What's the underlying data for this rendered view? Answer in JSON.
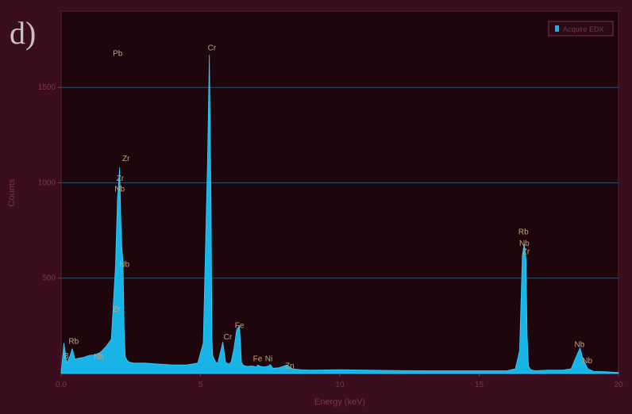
{
  "panel_label": "d)",
  "colors": {
    "figure_bg": "#3a0e1e",
    "plot_bg": "#1e070c",
    "grid": "#2f4f66",
    "spectrum_fill": "#18b4e6",
    "spectrum_edge": "#35d0ff",
    "peak_label": "#c9a27a",
    "axis_text": "#7b3646"
  },
  "chart_data": {
    "type": "area",
    "title": "",
    "xlabel": "Energy (keV)",
    "ylabel": "Counts",
    "xlim": [
      0,
      20
    ],
    "ylim": [
      0,
      1900
    ],
    "xticks": [
      {
        "value": 0,
        "label": "0.0"
      },
      {
        "value": 5,
        "label": "5"
      },
      {
        "value": 10,
        "label": "10"
      },
      {
        "value": 15,
        "label": "15"
      },
      {
        "value": 20,
        "label": "20"
      }
    ],
    "yticks": [
      {
        "value": 500,
        "label": "500"
      },
      {
        "value": 1000,
        "label": "1000"
      },
      {
        "value": 1500,
        "label": "1500"
      }
    ],
    "grid": true,
    "legend": {
      "position": "top-right",
      "entries": [
        "Acquire EDX"
      ]
    },
    "series": [
      {
        "name": "Acquire EDX",
        "x": [
          0.0,
          0.1,
          0.2,
          0.3,
          0.4,
          0.5,
          0.6,
          0.8,
          1.0,
          1.2,
          1.4,
          1.6,
          1.8,
          1.95,
          2.02,
          2.1,
          2.14,
          2.18,
          2.22,
          2.26,
          2.3,
          2.36,
          2.45,
          2.6,
          3.0,
          3.5,
          4.0,
          4.5,
          4.9,
          5.1,
          5.25,
          5.32,
          5.38,
          5.41,
          5.44,
          5.48,
          5.55,
          5.62,
          5.8,
          5.9,
          5.95,
          6.02,
          6.1,
          6.2,
          6.3,
          6.4,
          6.47,
          6.53,
          6.6,
          6.7,
          6.85,
          7.0,
          7.06,
          7.15,
          7.3,
          7.45,
          7.5,
          7.6,
          7.8,
          8.1,
          8.3,
          8.6,
          9.0,
          10.0,
          11.0,
          12.0,
          13.0,
          14.0,
          15.0,
          16.0,
          16.3,
          16.45,
          16.55,
          16.62,
          16.68,
          16.72,
          16.77,
          16.85,
          17.0,
          17.5,
          18.0,
          18.3,
          18.5,
          18.62,
          18.7,
          18.78,
          18.9,
          19.1,
          19.5,
          20.0
        ],
        "y": [
          8,
          160,
          55,
          85,
          130,
          75,
          80,
          85,
          95,
          98,
          110,
          140,
          180,
          560,
          910,
          1080,
          820,
          660,
          590,
          240,
          90,
          70,
          60,
          55,
          55,
          50,
          45,
          45,
          55,
          160,
          1100,
          1670,
          900,
          190,
          95,
          80,
          60,
          55,
          165,
          60,
          55,
          50,
          60,
          130,
          230,
          250,
          60,
          45,
          40,
          38,
          40,
          35,
          45,
          38,
          35,
          40,
          48,
          28,
          30,
          45,
          25,
          20,
          18,
          20,
          18,
          16,
          15,
          15,
          15,
          15,
          25,
          120,
          620,
          680,
          600,
          200,
          40,
          20,
          15,
          18,
          18,
          25,
          95,
          135,
          90,
          60,
          25,
          12,
          10,
          6
        ]
      }
    ],
    "annotations": [
      {
        "text": "B",
        "x": 0.18,
        "y": 78
      },
      {
        "text": "Rb",
        "x": 0.45,
        "y": 155
      },
      {
        "text": "Nb",
        "x": 1.35,
        "y": 75
      },
      {
        "text": "Pb",
        "x": 2.03,
        "y": 1665
      },
      {
        "text": "Zr",
        "x": 2.33,
        "y": 1115
      },
      {
        "text": "Zr",
        "x": 2.12,
        "y": 1010
      },
      {
        "text": "Nb",
        "x": 2.1,
        "y": 955
      },
      {
        "text": "Nb",
        "x": 2.27,
        "y": 560
      },
      {
        "text": "Zr",
        "x": 1.98,
        "y": 325
      },
      {
        "text": "Cr",
        "x": 5.41,
        "y": 1695
      },
      {
        "text": "Cr",
        "x": 5.98,
        "y": 178
      },
      {
        "text": "Fe",
        "x": 6.4,
        "y": 240
      },
      {
        "text": "Fe",
        "x": 7.05,
        "y": 65
      },
      {
        "text": "Ni",
        "x": 7.45,
        "y": 65
      },
      {
        "text": "Zn",
        "x": 8.2,
        "y": 28
      },
      {
        "text": "Rb",
        "x": 16.59,
        "y": 730
      },
      {
        "text": "Nb",
        "x": 16.62,
        "y": 670
      },
      {
        "text": "Zr",
        "x": 16.68,
        "y": 625
      },
      {
        "text": "Nb",
        "x": 18.6,
        "y": 140
      },
      {
        "text": "Nb",
        "x": 18.88,
        "y": 55
      }
    ]
  }
}
